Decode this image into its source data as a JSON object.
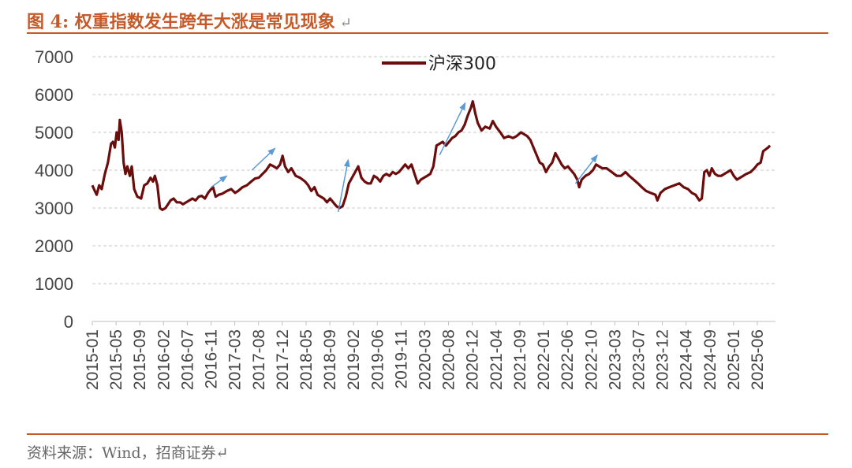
{
  "figure": {
    "caption": "图 4:  权重指数发生跨年大涨是常见现象",
    "caption_return_mark": "↵",
    "source": "资料来源：Wind，招商证券↵"
  },
  "colors": {
    "accent": "#c55a28",
    "series": "#6b0d0d",
    "arrow": "#5b9bd5",
    "grid": "#c8c8c8"
  },
  "chart_data": {
    "type": "line",
    "title": "",
    "xlabel": "",
    "ylabel": "",
    "ylim": [
      0,
      7000
    ],
    "yticks": [
      0,
      1000,
      2000,
      3000,
      4000,
      5000,
      6000,
      7000
    ],
    "grid": true,
    "legend_position": "top-center",
    "x_ticks": [
      "2015-01",
      "2015-05",
      "2015-09",
      "2016-02",
      "2016-07",
      "2016-11",
      "2017-03",
      "2017-08",
      "2017-12",
      "2018-05",
      "2018-09",
      "2019-02",
      "2019-06",
      "2019-11",
      "2020-03",
      "2020-08",
      "2020-12",
      "2021-04",
      "2021-09",
      "2022-01",
      "2022-06",
      "2022-10",
      "2023-03",
      "2023-07",
      "2023-12",
      "2024-04",
      "2024-09",
      "2025-01",
      "2025-06"
    ],
    "x_range": [
      2015.0,
      2025.917
    ],
    "series": [
      {
        "name": "沪深300",
        "points": [
          [
            2015.0,
            3600
          ],
          [
            2015.04,
            3450
          ],
          [
            2015.07,
            3350
          ],
          [
            2015.11,
            3600
          ],
          [
            2015.15,
            3500
          ],
          [
            2015.2,
            3900
          ],
          [
            2015.25,
            4200
          ],
          [
            2015.3,
            4700
          ],
          [
            2015.33,
            4750
          ],
          [
            2015.36,
            4600
          ],
          [
            2015.39,
            5000
          ],
          [
            2015.42,
            4800
          ],
          [
            2015.44,
            5330
          ],
          [
            2015.47,
            5000
          ],
          [
            2015.5,
            4200
          ],
          [
            2015.53,
            3900
          ],
          [
            2015.56,
            4100
          ],
          [
            2015.6,
            3850
          ],
          [
            2015.63,
            4100
          ],
          [
            2015.67,
            3500
          ],
          [
            2015.72,
            3300
          ],
          [
            2015.78,
            3250
          ],
          [
            2015.83,
            3600
          ],
          [
            2015.88,
            3650
          ],
          [
            2015.93,
            3800
          ],
          [
            2015.97,
            3700
          ],
          [
            2016.0,
            3850
          ],
          [
            2016.04,
            3600
          ],
          [
            2016.08,
            3000
          ],
          [
            2016.12,
            2950
          ],
          [
            2016.17,
            3000
          ],
          [
            2016.21,
            3100
          ],
          [
            2016.25,
            3200
          ],
          [
            2016.3,
            3250
          ],
          [
            2016.35,
            3150
          ],
          [
            2016.4,
            3150
          ],
          [
            2016.45,
            3100
          ],
          [
            2016.5,
            3150
          ],
          [
            2016.55,
            3200
          ],
          [
            2016.6,
            3250
          ],
          [
            2016.65,
            3200
          ],
          [
            2016.7,
            3300
          ],
          [
            2016.75,
            3320
          ],
          [
            2016.8,
            3250
          ],
          [
            2016.85,
            3400
          ],
          [
            2016.9,
            3500
          ],
          [
            2016.93,
            3550
          ],
          [
            2016.97,
            3300
          ],
          [
            2017.02,
            3350
          ],
          [
            2017.08,
            3380
          ],
          [
            2017.15,
            3450
          ],
          [
            2017.22,
            3500
          ],
          [
            2017.28,
            3400
          ],
          [
            2017.33,
            3450
          ],
          [
            2017.4,
            3550
          ],
          [
            2017.47,
            3600
          ],
          [
            2017.54,
            3700
          ],
          [
            2017.6,
            3780
          ],
          [
            2017.66,
            3800
          ],
          [
            2017.72,
            3900
          ],
          [
            2017.78,
            4000
          ],
          [
            2017.84,
            4150
          ],
          [
            2017.9,
            4100
          ],
          [
            2017.95,
            4050
          ],
          [
            2018.0,
            4150
          ],
          [
            2018.04,
            4380
          ],
          [
            2018.08,
            4100
          ],
          [
            2018.13,
            3950
          ],
          [
            2018.18,
            4050
          ],
          [
            2018.25,
            3850
          ],
          [
            2018.32,
            3800
          ],
          [
            2018.4,
            3700
          ],
          [
            2018.45,
            3600
          ],
          [
            2018.5,
            3450
          ],
          [
            2018.55,
            3550
          ],
          [
            2018.6,
            3350
          ],
          [
            2018.65,
            3300
          ],
          [
            2018.7,
            3250
          ],
          [
            2018.75,
            3150
          ],
          [
            2018.8,
            3250
          ],
          [
            2018.85,
            3150
          ],
          [
            2018.9,
            3050
          ],
          [
            2018.95,
            3000
          ],
          [
            2019.0,
            3050
          ],
          [
            2019.05,
            3300
          ],
          [
            2019.1,
            3650
          ],
          [
            2019.15,
            3800
          ],
          [
            2019.2,
            3950
          ],
          [
            2019.25,
            4100
          ],
          [
            2019.3,
            3800
          ],
          [
            2019.35,
            3700
          ],
          [
            2019.4,
            3650
          ],
          [
            2019.45,
            3650
          ],
          [
            2019.5,
            3850
          ],
          [
            2019.55,
            3800
          ],
          [
            2019.6,
            3700
          ],
          [
            2019.65,
            3850
          ],
          [
            2019.7,
            3900
          ],
          [
            2019.75,
            3850
          ],
          [
            2019.8,
            3950
          ],
          [
            2019.85,
            3900
          ],
          [
            2019.9,
            3950
          ],
          [
            2019.95,
            4050
          ],
          [
            2020.0,
            4150
          ],
          [
            2020.05,
            4050
          ],
          [
            2020.1,
            4150
          ],
          [
            2020.15,
            3900
          ],
          [
            2020.2,
            3650
          ],
          [
            2020.25,
            3750
          ],
          [
            2020.3,
            3800
          ],
          [
            2020.35,
            3850
          ],
          [
            2020.4,
            3900
          ],
          [
            2020.45,
            4100
          ],
          [
            2020.5,
            4650
          ],
          [
            2020.55,
            4700
          ],
          [
            2020.6,
            4750
          ],
          [
            2020.65,
            4650
          ],
          [
            2020.7,
            4750
          ],
          [
            2020.75,
            4850
          ],
          [
            2020.8,
            4900
          ],
          [
            2020.85,
            5000
          ],
          [
            2020.9,
            5050
          ],
          [
            2020.95,
            5200
          ],
          [
            2021.0,
            5450
          ],
          [
            2021.05,
            5650
          ],
          [
            2021.08,
            5820
          ],
          [
            2021.12,
            5500
          ],
          [
            2021.16,
            5250
          ],
          [
            2021.22,
            5050
          ],
          [
            2021.28,
            5150
          ],
          [
            2021.35,
            5100
          ],
          [
            2021.4,
            5300
          ],
          [
            2021.45,
            5150
          ],
          [
            2021.52,
            5000
          ],
          [
            2021.58,
            4850
          ],
          [
            2021.65,
            4900
          ],
          [
            2021.72,
            4850
          ],
          [
            2021.78,
            4900
          ],
          [
            2021.85,
            5000
          ],
          [
            2021.9,
            4950
          ],
          [
            2021.95,
            4900
          ],
          [
            2022.0,
            4800
          ],
          [
            2022.05,
            4600
          ],
          [
            2022.1,
            4400
          ],
          [
            2022.15,
            4200
          ],
          [
            2022.2,
            4150
          ],
          [
            2022.25,
            3950
          ],
          [
            2022.3,
            4100
          ],
          [
            2022.35,
            4200
          ],
          [
            2022.4,
            4450
          ],
          [
            2022.45,
            4300
          ],
          [
            2022.5,
            4150
          ],
          [
            2022.55,
            4050
          ],
          [
            2022.6,
            4100
          ],
          [
            2022.65,
            4000
          ],
          [
            2022.7,
            3900
          ],
          [
            2022.75,
            3750
          ],
          [
            2022.78,
            3550
          ],
          [
            2022.82,
            3750
          ],
          [
            2022.88,
            3850
          ],
          [
            2022.94,
            3900
          ],
          [
            2023.0,
            4000
          ],
          [
            2023.05,
            4150
          ],
          [
            2023.1,
            4100
          ],
          [
            2023.15,
            4050
          ],
          [
            2023.22,
            4050
          ],
          [
            2023.3,
            3950
          ],
          [
            2023.38,
            3850
          ],
          [
            2023.45,
            3850
          ],
          [
            2023.52,
            3950
          ],
          [
            2023.58,
            3850
          ],
          [
            2023.65,
            3750
          ],
          [
            2023.72,
            3650
          ],
          [
            2023.78,
            3550
          ],
          [
            2023.85,
            3450
          ],
          [
            2023.92,
            3400
          ],
          [
            2024.0,
            3350
          ],
          [
            2024.03,
            3200
          ],
          [
            2024.08,
            3400
          ],
          [
            2024.15,
            3500
          ],
          [
            2024.22,
            3550
          ],
          [
            2024.3,
            3600
          ],
          [
            2024.38,
            3650
          ],
          [
            2024.45,
            3550
          ],
          [
            2024.52,
            3500
          ],
          [
            2024.58,
            3400
          ],
          [
            2024.64,
            3350
          ],
          [
            2024.7,
            3200
          ],
          [
            2024.74,
            3250
          ],
          [
            2024.78,
            3950
          ],
          [
            2024.82,
            4000
          ],
          [
            2024.86,
            3850
          ],
          [
            2024.9,
            4050
          ],
          [
            2024.95,
            3900
          ],
          [
            2025.0,
            3850
          ],
          [
            2025.05,
            3850
          ],
          [
            2025.1,
            3900
          ],
          [
            2025.15,
            3950
          ],
          [
            2025.2,
            4000
          ],
          [
            2025.25,
            3850
          ],
          [
            2025.3,
            3750
          ],
          [
            2025.35,
            3800
          ],
          [
            2025.4,
            3850
          ],
          [
            2025.45,
            3900
          ],
          [
            2025.52,
            3950
          ],
          [
            2025.58,
            4050
          ],
          [
            2025.63,
            4150
          ],
          [
            2025.68,
            4200
          ],
          [
            2025.72,
            4500
          ],
          [
            2025.76,
            4550
          ],
          [
            2025.8,
            4600
          ],
          [
            2025.83,
            4650
          ]
        ]
      }
    ],
    "annotations": [
      {
        "type": "arrow",
        "from": [
          2016.9,
          3550
        ],
        "to": [
          2017.15,
          3850
        ]
      },
      {
        "type": "arrow",
        "from": [
          2017.55,
          4000
        ],
        "to": [
          2017.92,
          4580
        ]
      },
      {
        "type": "arrow",
        "from": [
          2018.93,
          2900
        ],
        "to": [
          2019.09,
          4280
        ]
      },
      {
        "type": "arrow",
        "from": [
          2020.55,
          4400
        ],
        "to": [
          2020.96,
          5780
        ]
      },
      {
        "type": "arrow",
        "from": [
          2022.72,
          3650
        ],
        "to": [
          2023.07,
          4400
        ]
      }
    ]
  }
}
